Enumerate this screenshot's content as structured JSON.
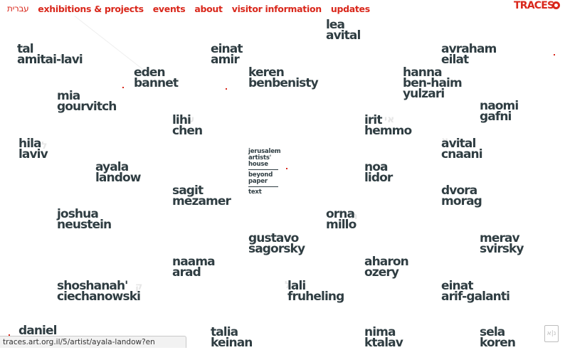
{
  "nav": {
    "items": [
      {
        "label": "עברית",
        "lang": "he"
      },
      {
        "label": "exhibitions & projects"
      },
      {
        "label": "events"
      },
      {
        "label": "about"
      },
      {
        "label": "visitor information"
      },
      {
        "label": "updates"
      }
    ]
  },
  "brand": {
    "name": "TRACES"
  },
  "center": {
    "venue": [
      "jerusalem",
      "artists'",
      "house"
    ],
    "project": [
      "beyond",
      "paper"
    ],
    "text_link": "text"
  },
  "artists": [
    {
      "first": "lea",
      "last": "avital"
    },
    {
      "first": "tal",
      "last": "amitai-lavi"
    },
    {
      "first": "einat",
      "last": "amir"
    },
    {
      "first": "avraham",
      "last": "eilat"
    },
    {
      "first": "eden",
      "last": "bannet"
    },
    {
      "first": "keren",
      "last": "benbenisty"
    },
    {
      "first": "hanna",
      "last": "ben-haim"
    },
    {
      "first": "yulzari",
      "last": ""
    },
    {
      "first": "mia",
      "last": "gourvitch"
    },
    {
      "first": "naomi",
      "last": "gafni"
    },
    {
      "first": "lihi",
      "last": "chen"
    },
    {
      "first": "irit",
      "last": "hemmo"
    },
    {
      "first": "hila",
      "last": "laviv"
    },
    {
      "first": "avital",
      "last": "cnaani"
    },
    {
      "first": "ayala",
      "last": "landow"
    },
    {
      "first": "noa",
      "last": "lidor"
    },
    {
      "first": "sagit",
      "last": "mezamer"
    },
    {
      "first": "dvora",
      "last": "morag"
    },
    {
      "first": "joshua",
      "last": "neustein"
    },
    {
      "first": "orna",
      "last": "millo"
    },
    {
      "first": "gustavo",
      "last": "sagorsky"
    },
    {
      "first": "merav",
      "last": "svirsky"
    },
    {
      "first": "naama",
      "last": "arad"
    },
    {
      "first": "aharon",
      "last": "ozery"
    },
    {
      "first": "shoshanah'",
      "last": "ciechanowski"
    },
    {
      "first": "lali",
      "last": "fruheling"
    },
    {
      "first": "einat",
      "last": "arif-galanti"
    },
    {
      "first": "daniel",
      "last": ""
    },
    {
      "first": "talia",
      "last": "keinan"
    },
    {
      "first": "nima",
      "last": "ktalav"
    },
    {
      "first": "sela",
      "last": "koren"
    }
  ],
  "ghost_letters": [
    "ל",
    "ע",
    "ל",
    "אי",
    "ה",
    "א",
    "נ",
    "ו",
    "ג",
    "ל",
    "ע",
    "ק"
  ],
  "status_bar": {
    "url": "traces.art.org.il/5/artist/ayala-landow?en"
  },
  "corner_badge": {
    "label": "נ|א"
  },
  "colors": {
    "accent": "#d9271b",
    "text": "#2f3d42",
    "ghost": "#e7e7e7"
  }
}
